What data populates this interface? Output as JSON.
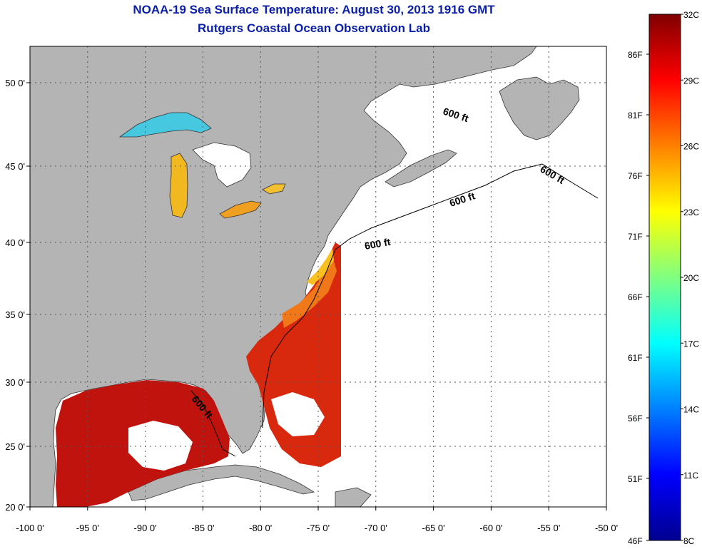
{
  "title_line1": "NOAA-19 Sea Surface Temperature:  August 30, 2013 1916 GMT",
  "title_line2": "Rutgers Coastal Ocean Observation Lab",
  "axes": {
    "lat_labels": [
      {
        "lat": 50,
        "label": "50 0'"
      },
      {
        "lat": 45,
        "label": "45 0'"
      },
      {
        "lat": 40,
        "label": "40 0'"
      },
      {
        "lat": 35,
        "label": "35 0'"
      },
      {
        "lat": 30,
        "label": "30 0'"
      },
      {
        "lat": 25,
        "label": "25 0'"
      },
      {
        "lat": 20,
        "label": "20 0'"
      }
    ],
    "lon_labels": [
      {
        "lon": -100,
        "label": "-100 0'"
      },
      {
        "lon": -95,
        "label": "-95 0'"
      },
      {
        "lon": -90,
        "label": "-90 0'"
      },
      {
        "lon": -85,
        "label": "-85 0'"
      },
      {
        "lon": -80,
        "label": "-80 0'"
      },
      {
        "lon": -75,
        "label": "-75 0'"
      },
      {
        "lon": -70,
        "label": "-70 0'"
      },
      {
        "lon": -65,
        "label": "-65 0'"
      },
      {
        "lon": -60,
        "label": "-60 0'"
      },
      {
        "lon": -55,
        "label": "-55 0'"
      },
      {
        "lon": -50,
        "label": "-50 0'"
      }
    ]
  },
  "isobath_labels": [
    "600 ft",
    "600 ft",
    "600 ft",
    "600 ft",
    "600 ft"
  ],
  "colorbar": {
    "min_c": 8,
    "max_c": 32,
    "celsius_labels": [
      "32C",
      "29C",
      "26C",
      "23C",
      "20C",
      "17C",
      "14C",
      "11C",
      "8C"
    ],
    "fahrenheit_labels": [
      "86F",
      "81F",
      "76F",
      "71F",
      "66F",
      "61F",
      "56F",
      "51F",
      "46F"
    ],
    "gradient_stops": [
      "#00008f",
      "#0000ff",
      "#0080ff",
      "#00ffff",
      "#80ff80",
      "#ffff00",
      "#ff8000",
      "#ff0000",
      "#800000"
    ]
  },
  "colors": {
    "land": "#b4b4b4",
    "no_data": "#ffffff",
    "grid": "#555555",
    "title": "#0a1fa8"
  }
}
